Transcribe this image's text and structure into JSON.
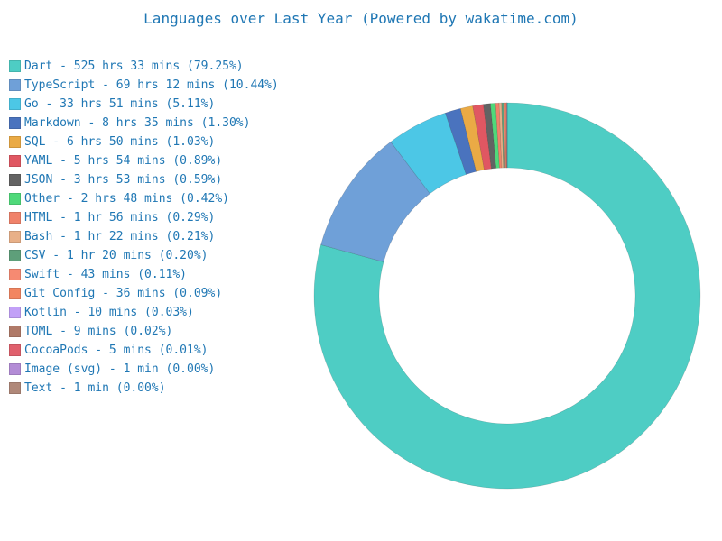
{
  "chart_data": {
    "type": "pie",
    "title": "Languages over Last Year (Powered by wakatime.com)",
    "style": "donut",
    "legend_position": "left",
    "slices": [
      {
        "name": "Dart",
        "label": "Dart - 525 hrs 33 mins (79.25%)",
        "percent": 79.25,
        "color": "#4ECDC4"
      },
      {
        "name": "TypeScript",
        "label": "TypeScript - 69 hrs 12 mins (10.44%)",
        "percent": 10.44,
        "color": "#6FA0D8"
      },
      {
        "name": "Go",
        "label": "Go - 33 hrs 51 mins (5.11%)",
        "percent": 5.11,
        "color": "#4CC7E6"
      },
      {
        "name": "Markdown",
        "label": "Markdown - 8 hrs 35 mins (1.30%)",
        "percent": 1.3,
        "color": "#4A73BE"
      },
      {
        "name": "SQL",
        "label": "SQL - 6 hrs 50 mins (1.03%)",
        "percent": 1.03,
        "color": "#EAAA45"
      },
      {
        "name": "YAML",
        "label": "YAML - 5 hrs 54 mins (0.89%)",
        "percent": 0.89,
        "color": "#E05762"
      },
      {
        "name": "JSON",
        "label": "JSON - 3 hrs 53 mins (0.59%)",
        "percent": 0.59,
        "color": "#636363"
      },
      {
        "name": "Other",
        "label": "Other - 2 hrs 48 mins (0.42%)",
        "percent": 0.42,
        "color": "#4FD97A"
      },
      {
        "name": "HTML",
        "label": "HTML - 1 hr 56 mins (0.29%)",
        "percent": 0.29,
        "color": "#F0826A"
      },
      {
        "name": "Bash",
        "label": "Bash - 1 hr 22 mins (0.21%)",
        "percent": 0.21,
        "color": "#E8B088"
      },
      {
        "name": "CSV",
        "label": "CSV - 1 hr 20 mins (0.20%)",
        "percent": 0.2,
        "color": "#5E9F7A"
      },
      {
        "name": "Swift",
        "label": "Swift - 43 mins (0.11%)",
        "percent": 0.11,
        "color": "#F68A72"
      },
      {
        "name": "Git Config",
        "label": "Git Config - 36 mins (0.09%)",
        "percent": 0.09,
        "color": "#F28661"
      },
      {
        "name": "Kotlin",
        "label": "Kotlin - 10 mins (0.03%)",
        "percent": 0.03,
        "color": "#C2A0F7"
      },
      {
        "name": "TOML",
        "label": "TOML - 9 mins (0.02%)",
        "percent": 0.02,
        "color": "#B07A68"
      },
      {
        "name": "CocoaPods",
        "label": "CocoaPods - 5 mins (0.01%)",
        "percent": 0.01,
        "color": "#E0606D"
      },
      {
        "name": "Image (svg)",
        "label": "Image (svg) - 1 min (0.00%)",
        "percent": 0.0,
        "color": "#B38CD6"
      },
      {
        "name": "Text",
        "label": "Text - 1 min (0.00%)",
        "percent": 0.0,
        "color": "#B08879"
      }
    ]
  }
}
